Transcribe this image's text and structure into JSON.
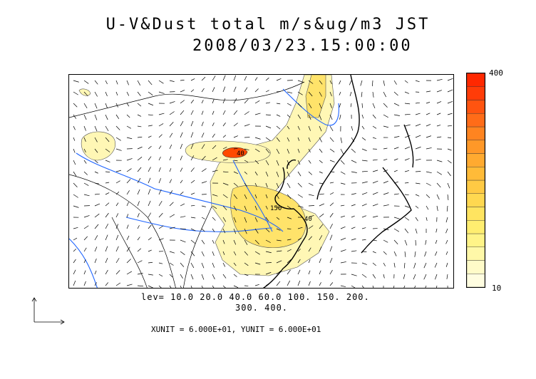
{
  "title_line1": "U-V&Dust total m/s&ug/m3 JST",
  "title_line2": "2008/03/23.15:00:00",
  "colorbar": {
    "max_label": "400",
    "min_label": "10",
    "colors": [
      "#fffde0",
      "#fffbc8",
      "#fff8a8",
      "#fff488",
      "#ffee70",
      "#ffe460",
      "#ffd850",
      "#ffca44",
      "#ffbb38",
      "#ffaa30",
      "#ff9828",
      "#ff8420",
      "#ff6c18",
      "#ff5410",
      "#ff3c08",
      "#ff2800"
    ]
  },
  "levels_line1": "lev= 10.0 20.0 40.0 60.0 100. 150. 200.",
  "levels_line2": "300. 400.",
  "unit_line": "XUNIT = 6.000E+01, YUNIT = 6.000E+01",
  "colors": {
    "coast": "#000000",
    "rivers": "#1e64ff",
    "dust_low": "#fff7b5",
    "dust_mid": "#ffe36a",
    "dust_high": "#ff4a00"
  },
  "contour_labels": [
    "40",
    "150",
    "40"
  ]
}
